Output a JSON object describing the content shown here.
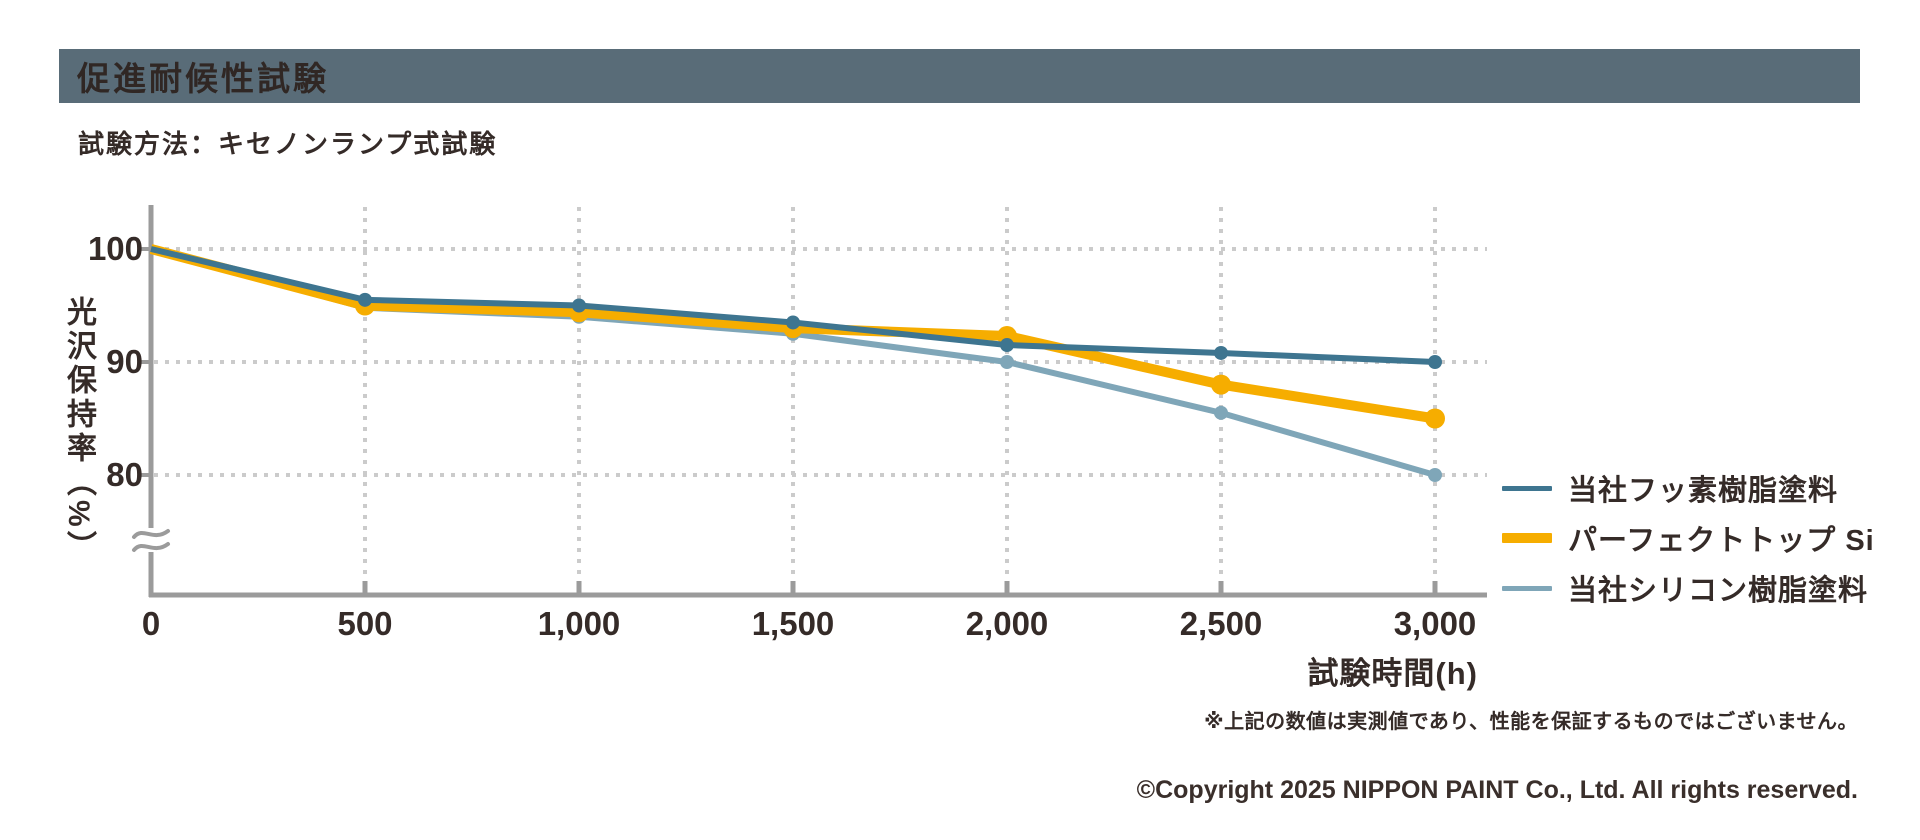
{
  "header": {
    "title": "促進耐候性試験"
  },
  "subtitle": "試験方法：キセノンランプ式試験",
  "note": "※上記の数値は実測値であり、性能を保証するものではございません。",
  "copyright": "©Copyright 2025 NIPPON PAINT Co., Ltd. All rights reserved.",
  "colors": {
    "header_bar": "#596C78",
    "text": "#352B28",
    "axis": "#9B9B9B",
    "grid_dots": "#CBCBCB",
    "background": "#FFFFFF"
  },
  "chart_data": {
    "type": "line",
    "title": "",
    "xlabel": "試験時間(h)",
    "ylabel": "光沢保持率（%）",
    "x": [
      0,
      500,
      1000,
      1500,
      2000,
      2500,
      3000
    ],
    "x_tick_labels": [
      "0",
      "500",
      "1,000",
      "1,500",
      "2,000",
      "2,500",
      "3,000"
    ],
    "y_ticks": [
      100,
      90,
      80
    ],
    "ylim_displayed": [
      80,
      103
    ],
    "y_axis_break": true,
    "grid": "dotted",
    "legend_position": "right",
    "series": [
      {
        "name": "当社フッ素樹脂塗料",
        "color": "#3E7590",
        "line_width": 6,
        "marker_radius": 7,
        "swatch_height": 5,
        "values": [
          100,
          95.5,
          95,
          93.5,
          91.5,
          90.8,
          90
        ]
      },
      {
        "name": "パーフェクトトップ Si",
        "color": "#F6AD00",
        "line_width": 10,
        "marker_radius": 10,
        "swatch_height": 10,
        "values": [
          100,
          95,
          94.4,
          93,
          92.3,
          88,
          85
        ]
      },
      {
        "name": "当社シリコン樹脂塗料",
        "color": "#7FA6B8",
        "line_width": 6,
        "marker_radius": 7,
        "swatch_height": 5,
        "values": [
          100,
          94.8,
          94,
          92.5,
          90,
          85.5,
          80
        ]
      }
    ]
  }
}
